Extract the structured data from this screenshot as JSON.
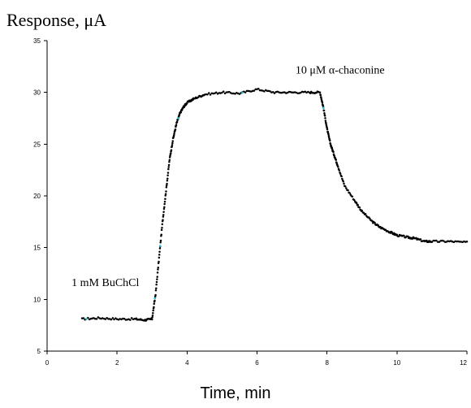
{
  "chart_data": {
    "type": "scatter",
    "ylabel": "Response, μA",
    "xlabel": "Time, min",
    "xlim": [
      0,
      12
    ],
    "ylim": [
      5,
      35
    ],
    "xticks": [
      0,
      2,
      4,
      6,
      8,
      10,
      12
    ],
    "yticks": [
      5,
      10,
      15,
      20,
      25,
      30,
      35
    ],
    "xtick_labels": [
      "0",
      "2",
      "4",
      "6",
      "8",
      "10",
      "12"
    ],
    "ytick_labels": [
      "5",
      "10",
      "15",
      "20",
      "25",
      "30",
      "35"
    ],
    "grid": false,
    "annotations": [
      {
        "text": "1 mM BuChCl",
        "x": 0.7,
        "y": 11.3
      },
      {
        "text": "10 μM α-chaconine",
        "x": 7.1,
        "y": 31.8
      }
    ],
    "series": [
      {
        "x": [
          1.0,
          1.5,
          2.0,
          2.5,
          2.8,
          3.0,
          3.1,
          3.2,
          3.3,
          3.4,
          3.5,
          3.6,
          3.7,
          3.8,
          3.9,
          4.0,
          4.2,
          4.5,
          5.0,
          5.5,
          6.0,
          6.5,
          7.0,
          7.5,
          7.8,
          7.9,
          8.0,
          8.1,
          8.2,
          8.3,
          8.5,
          8.8,
          9.0,
          9.3,
          9.5,
          9.8,
          10.0,
          10.3,
          10.5,
          10.8,
          11.0,
          11.5,
          12.0
        ],
        "y": [
          8.1,
          8.2,
          8.1,
          8.1,
          8.0,
          8.1,
          10.5,
          14.0,
          17.5,
          20.5,
          23.5,
          25.5,
          27.0,
          28.0,
          28.6,
          29.0,
          29.4,
          29.8,
          30.0,
          29.9,
          30.3,
          30.0,
          30.0,
          30.0,
          30.0,
          28.5,
          26.5,
          25.0,
          24.0,
          23.0,
          21.0,
          19.5,
          18.5,
          17.5,
          17.0,
          16.5,
          16.2,
          16.0,
          15.9,
          15.6,
          15.6,
          15.6,
          15.5
        ]
      }
    ]
  }
}
